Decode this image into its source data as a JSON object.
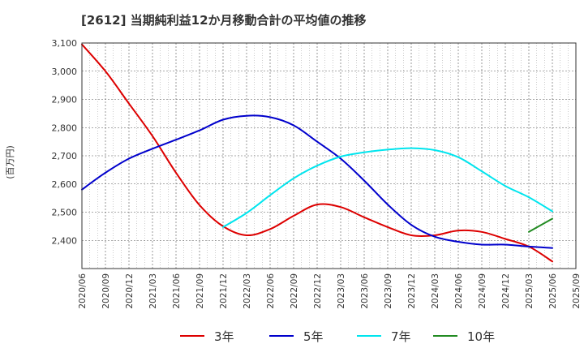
{
  "chart_data": {
    "type": "line",
    "title": "[2612]  当期純利益12か月移動合計の平均値の推移",
    "xlabel": "",
    "ylabel": "(百万円)",
    "ylim": [
      2300,
      3100
    ],
    "yticks": [
      2400,
      2500,
      2600,
      2700,
      2800,
      2900,
      3000,
      3100
    ],
    "ytick_labels": [
      "2,400",
      "2,500",
      "2,600",
      "2,700",
      "2,800",
      "2,900",
      "3,000",
      "3,100"
    ],
    "xticks": [
      "2020/06",
      "2020/09",
      "2020/12",
      "2021/03",
      "2021/06",
      "2021/09",
      "2021/12",
      "2022/03",
      "2022/06",
      "2022/09",
      "2022/12",
      "2023/03",
      "2023/06",
      "2023/09",
      "2023/12",
      "2024/03",
      "2024/06",
      "2024/09",
      "2024/12",
      "2025/03",
      "2025/06",
      "2025/09"
    ],
    "grid": true,
    "legend_position": "bottom",
    "series": [
      {
        "name": "3年",
        "color": "#dd0000",
        "points": [
          [
            "2020/06",
            3095
          ],
          [
            "2020/09",
            3000
          ],
          [
            "2020/12",
            2885
          ],
          [
            "2021/03",
            2770
          ],
          [
            "2021/06",
            2640
          ],
          [
            "2021/09",
            2525
          ],
          [
            "2021/12",
            2450
          ],
          [
            "2022/03",
            2418
          ],
          [
            "2022/06",
            2440
          ],
          [
            "2022/09",
            2487
          ],
          [
            "2022/12",
            2527
          ],
          [
            "2023/03",
            2518
          ],
          [
            "2023/06",
            2482
          ],
          [
            "2023/09",
            2447
          ],
          [
            "2023/12",
            2418
          ],
          [
            "2024/03",
            2418
          ],
          [
            "2024/06",
            2435
          ],
          [
            "2024/09",
            2430
          ],
          [
            "2024/12",
            2405
          ],
          [
            "2025/03",
            2378
          ],
          [
            "2025/06",
            2325
          ]
        ]
      },
      {
        "name": "5年",
        "color": "#0000cc",
        "points": [
          [
            "2020/06",
            2580
          ],
          [
            "2020/09",
            2640
          ],
          [
            "2020/12",
            2690
          ],
          [
            "2021/03",
            2725
          ],
          [
            "2021/06",
            2757
          ],
          [
            "2021/09",
            2790
          ],
          [
            "2021/12",
            2828
          ],
          [
            "2022/03",
            2842
          ],
          [
            "2022/06",
            2837
          ],
          [
            "2022/09",
            2808
          ],
          [
            "2022/12",
            2750
          ],
          [
            "2023/03",
            2690
          ],
          [
            "2023/06",
            2612
          ],
          [
            "2023/09",
            2527
          ],
          [
            "2023/12",
            2455
          ],
          [
            "2024/03",
            2413
          ],
          [
            "2024/06",
            2395
          ],
          [
            "2024/09",
            2385
          ],
          [
            "2024/12",
            2385
          ],
          [
            "2025/03",
            2378
          ],
          [
            "2025/06",
            2373
          ]
        ]
      },
      {
        "name": "7年",
        "color": "#00e5ee",
        "points": [
          [
            "2021/12",
            2447
          ],
          [
            "2022/03",
            2497
          ],
          [
            "2022/06",
            2560
          ],
          [
            "2022/09",
            2620
          ],
          [
            "2022/12",
            2665
          ],
          [
            "2023/03",
            2697
          ],
          [
            "2023/06",
            2712
          ],
          [
            "2023/09",
            2722
          ],
          [
            "2023/12",
            2727
          ],
          [
            "2024/03",
            2720
          ],
          [
            "2024/06",
            2695
          ],
          [
            "2024/09",
            2645
          ],
          [
            "2024/12",
            2593
          ],
          [
            "2025/03",
            2553
          ],
          [
            "2025/06",
            2503
          ]
        ]
      },
      {
        "name": "10年",
        "color": "#228b22",
        "points": [
          [
            "2025/03",
            2430
          ],
          [
            "2025/06",
            2477
          ]
        ]
      }
    ]
  }
}
